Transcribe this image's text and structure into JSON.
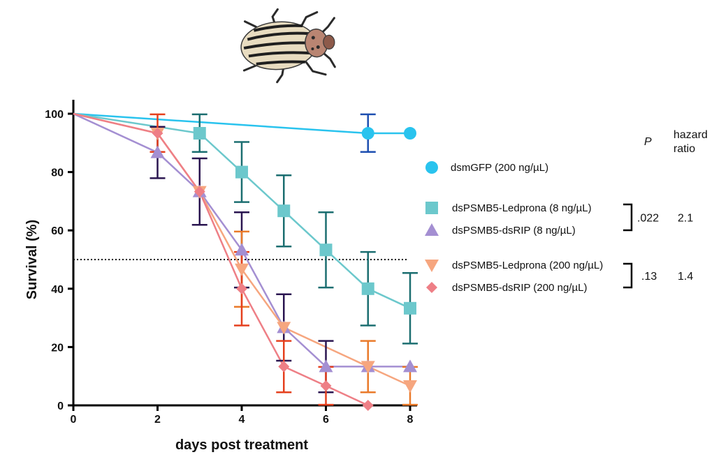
{
  "chart_data": {
    "type": "line",
    "title": "",
    "xlabel": "days post treatment",
    "ylabel": "Survival (%)",
    "xlim": [
      0,
      8
    ],
    "ylim": [
      0,
      100
    ],
    "x_ticks": [
      "0",
      "2",
      "4",
      "6",
      "8"
    ],
    "y_ticks": [
      "0",
      "20",
      "40",
      "60",
      "80",
      "100"
    ],
    "reference_line": {
      "y": 50,
      "style": "dotted"
    },
    "grid": false,
    "legend_position": "right",
    "series": [
      {
        "name": "dsmGFP (200 ng/µL)",
        "color": "#29c3ee",
        "marker": "circle",
        "points": [
          {
            "x": 0,
            "y": 100
          },
          {
            "x": 7,
            "y": 93.3
          },
          {
            "x": 8,
            "y": 93.3
          }
        ],
        "error_bars": {
          "color": "#1e4fb0",
          "items": [
            {
              "x": 7,
              "low": 86.9,
              "high": 99.8
            }
          ]
        }
      },
      {
        "name": "dsPSMB5-Ledprona (8 ng/µL)",
        "color": "#6cc8cc",
        "marker": "square",
        "points": [
          {
            "x": 0,
            "y": 100
          },
          {
            "x": 3,
            "y": 93.3
          },
          {
            "x": 4,
            "y": 80
          },
          {
            "x": 5,
            "y": 66.7
          },
          {
            "x": 6,
            "y": 53.3
          },
          {
            "x": 7,
            "y": 40
          },
          {
            "x": 8,
            "y": 33.3
          }
        ],
        "error_bars": {
          "color": "#1b6e70",
          "items": [
            {
              "x": 3,
              "low": 86.9,
              "high": 99.8
            },
            {
              "x": 4,
              "low": 69.7,
              "high": 90.3
            },
            {
              "x": 5,
              "low": 54.5,
              "high": 78.9
            },
            {
              "x": 6,
              "low": 40.4,
              "high": 66.2
            },
            {
              "x": 7,
              "low": 27.4,
              "high": 52.6
            },
            {
              "x": 8,
              "low": 21.2,
              "high": 45.4
            }
          ]
        }
      },
      {
        "name": "dsPSMB5-dsRIP (8 ng/µL)",
        "color": "#a48fd2",
        "marker": "triangle-up",
        "points": [
          {
            "x": 0,
            "y": 100
          },
          {
            "x": 2,
            "y": 86.7
          },
          {
            "x": 3,
            "y": 73.3
          },
          {
            "x": 4,
            "y": 53.3
          },
          {
            "x": 5,
            "y": 26.7
          },
          {
            "x": 6,
            "y": 13.3
          },
          {
            "x": 7,
            "y": 13.3
          },
          {
            "x": 8,
            "y": 13.3
          }
        ],
        "error_bars": {
          "color": "#2a1550",
          "items": [
            {
              "x": 2,
              "low": 77.9,
              "high": 95.5
            },
            {
              "x": 3,
              "low": 61.9,
              "high": 84.7
            },
            {
              "x": 4,
              "low": 40.4,
              "high": 66.2
            },
            {
              "x": 5,
              "low": 15.3,
              "high": 38.1
            },
            {
              "x": 6,
              "low": 4.5,
              "high": 22.1
            }
          ]
        }
      },
      {
        "name": "dsPSMB5-Ledprona (200 ng/µL)",
        "color": "#f6a67f",
        "marker": "triangle-down",
        "points": [
          {
            "x": 0,
            "y": 100
          },
          {
            "x": 2,
            "y": 93.3
          },
          {
            "x": 3,
            "y": 73.3
          },
          {
            "x": 4,
            "y": 46.7
          },
          {
            "x": 5,
            "y": 26.7
          },
          {
            "x": 7,
            "y": 13.3
          },
          {
            "x": 8,
            "y": 6.7
          }
        ],
        "error_bars": {
          "color": "#ea7a2a",
          "items": [
            {
              "x": 4,
              "low": 33.8,
              "high": 59.6
            },
            {
              "x": 7,
              "low": 4.5,
              "high": 22.1
            },
            {
              "x": 8,
              "low": 0.2,
              "high": 13.2
            }
          ]
        }
      },
      {
        "name": "dsPSMB5-dsRIP (200 ng/µL)",
        "color": "#ee7f86",
        "marker": "diamond",
        "points": [
          {
            "x": 0,
            "y": 100
          },
          {
            "x": 2,
            "y": 93.3
          },
          {
            "x": 3,
            "y": 73.3
          },
          {
            "x": 4,
            "y": 40
          },
          {
            "x": 5,
            "y": 13.3
          },
          {
            "x": 6,
            "y": 6.7
          },
          {
            "x": 7,
            "y": 0
          }
        ],
        "error_bars": {
          "color": "#e5401e",
          "items": [
            {
              "x": 2,
              "low": 86.9,
              "high": 99.8
            },
            {
              "x": 4,
              "low": 27.4,
              "high": 52.6
            },
            {
              "x": 5,
              "low": 4.5,
              "high": 22.1
            },
            {
              "x": 6,
              "low": 0.2,
              "high": 13.2
            }
          ]
        }
      }
    ],
    "stats": {
      "header_p": "P",
      "header_hr_line1": "hazard",
      "header_hr_line2": "ratio",
      "comparisons": [
        {
          "p": ".022",
          "hazard_ratio": "2.1"
        },
        {
          "p": ".13",
          "hazard_ratio": "1.4"
        }
      ]
    },
    "illustration": "colorado-potato-beetle"
  }
}
